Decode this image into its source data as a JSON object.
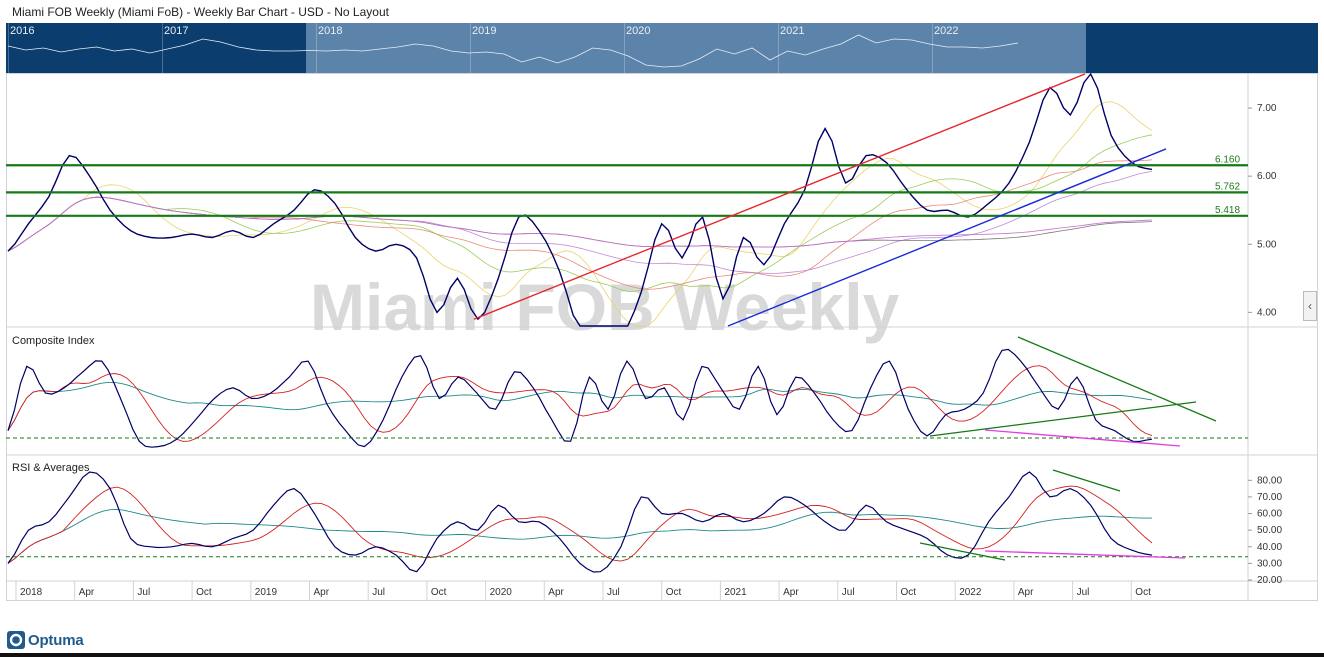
{
  "header": {
    "title": "Miami FOB Weekly (Miami FoB) - Weekly Bar Chart - USD - No Layout"
  },
  "navigator": {
    "years": [
      "2016",
      "2017",
      "2018",
      "2019",
      "2020",
      "2021",
      "2022"
    ]
  },
  "watermark": "Miami FOB Weekly",
  "brand": {
    "name": "Optuma"
  },
  "colors": {
    "price": "#000066",
    "red": "#e8262a",
    "blue": "#1a2bd6",
    "green": "#157a15",
    "magenta": "#e23ce0",
    "teal": "#1f8a8a"
  },
  "chart_data": [
    {
      "type": "line",
      "pane": "price",
      "title": "",
      "x_ticks": [
        "2018",
        "Apr",
        "Jul",
        "Oct",
        "2019",
        "Apr",
        "Jul",
        "Oct",
        "2020",
        "Apr",
        "Jul",
        "Oct",
        "2021",
        "Apr",
        "Jul",
        "Oct",
        "2022",
        "Apr",
        "Jul",
        "Oct"
      ],
      "y_ticks": [
        "4.00",
        "5.00",
        "6.00",
        "7.00"
      ],
      "ylim": [
        3.8,
        7.5
      ],
      "levels": [
        {
          "label": "6.160",
          "value": 6.16
        },
        {
          "label": "5.762",
          "value": 5.762
        },
        {
          "label": "5.418",
          "value": 5.418
        }
      ],
      "series": [
        {
          "values": [
            4.9,
            5.3,
            5.7,
            6.3,
            6.0,
            5.5,
            5.2,
            5.1,
            5.1,
            5.15,
            5.1,
            5.2,
            5.1,
            5.3,
            5.5,
            5.8,
            5.6,
            5.1,
            4.9,
            5.0,
            4.8,
            4.0,
            4.5,
            3.9,
            4.5,
            5.4,
            5.2,
            4.6,
            3.7,
            3.5,
            3.6,
            4.3,
            5.3,
            4.8,
            5.4,
            4.2,
            5.1,
            4.7,
            5.3,
            5.8,
            6.7,
            5.9,
            6.3,
            6.2,
            5.8,
            5.5,
            5.5,
            5.4,
            5.6,
            5.9,
            6.5,
            7.3,
            6.9,
            7.5,
            6.6,
            6.2,
            6.1
          ]
        }
      ],
      "trendlines": [
        {
          "color": "red",
          "from": [
            "Oct 2019",
            3.9
          ],
          "to": [
            "Apr 2022",
            7.5
          ]
        },
        {
          "color": "blue",
          "from": [
            "Dec 2020",
            3.8
          ],
          "to": [
            "Aug 2022",
            6.4
          ]
        }
      ]
    },
    {
      "type": "line",
      "pane": "composite",
      "title": "Composite Index",
      "series": [
        {
          "values": [
            20,
            80,
            55,
            60,
            75,
            85,
            50,
            10,
            5,
            12,
            30,
            50,
            60,
            50,
            55,
            70,
            85,
            45,
            20,
            5,
            30,
            70,
            90,
            50,
            70,
            55,
            40,
            75,
            60,
            30,
            10,
            70,
            40,
            85,
            50,
            60,
            30,
            80,
            60,
            40,
            80,
            35,
            70,
            55,
            30,
            20,
            60,
            85,
            40,
            15,
            35,
            40,
            55,
            95,
            85,
            60,
            40,
            70,
            30,
            20,
            10,
            12
          ]
        }
      ]
    },
    {
      "type": "line",
      "pane": "rsi",
      "title": "RSI & Averages",
      "y_ticks": [
        "20.00",
        "30.00",
        "40.00",
        "50.00",
        "60.00",
        "70.00",
        "80.00"
      ],
      "ylim": [
        20,
        85
      ],
      "series": [
        {
          "values": [
            30,
            50,
            55,
            70,
            85,
            75,
            45,
            40,
            40,
            42,
            40,
            45,
            50,
            65,
            75,
            60,
            40,
            35,
            40,
            35,
            25,
            45,
            55,
            50,
            65,
            55,
            55,
            45,
            30,
            25,
            40,
            70,
            60,
            60,
            55,
            60,
            55,
            60,
            70,
            65,
            55,
            50,
            65,
            55,
            50,
            45,
            35,
            35,
            55,
            70,
            85,
            70,
            75,
            65,
            45,
            38,
            35
          ]
        }
      ]
    }
  ]
}
